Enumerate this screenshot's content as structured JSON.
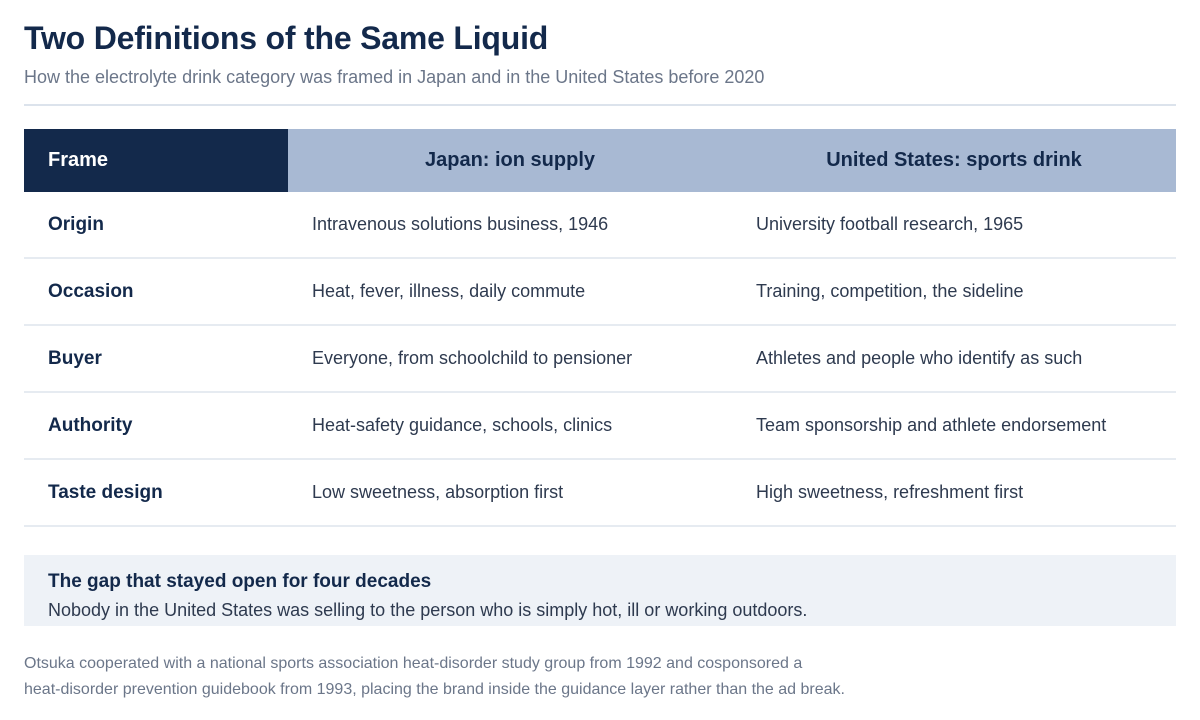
{
  "title": "Two Definitions of the Same Liquid",
  "subtitle": "How the electrolyte drink category was framed in Japan and in the United States before 2020",
  "table": {
    "headers": {
      "frame": "Frame",
      "japan": "Japan: ion supply",
      "us": "United States: sports drink"
    },
    "rows": [
      {
        "label": "Origin",
        "japan": "Intravenous solutions business, 1946",
        "us": "University football research, 1965"
      },
      {
        "label": "Occasion",
        "japan": "Heat, fever, illness, daily commute",
        "us": "Training, competition, the sideline"
      },
      {
        "label": "Buyer",
        "japan": "Everyone, from schoolchild to pensioner",
        "us": "Athletes and people who identify as such"
      },
      {
        "label": "Authority",
        "japan": "Heat-safety guidance, schools, clinics",
        "us": "Team sponsorship and athlete endorsement"
      },
      {
        "label": "Taste design",
        "japan": "Low sweetness, absorption first",
        "us": "High sweetness, refreshment first"
      }
    ]
  },
  "callout": {
    "title": "The gap that stayed open for four decades",
    "text": "Nobody in the United States was selling to the person who is simply hot, ill or working outdoors."
  },
  "footnote": {
    "line1": "Otsuka cooperated with a national sports association heat-disorder study group from 1992 and cosponsored a",
    "line2": "heat-disorder prevention guidebook from 1993, placing the brand inside the guidance layer rather than the ad break."
  },
  "colors": {
    "navy": "#13294b",
    "header_blue": "#a8b9d3",
    "callout_bg": "#eef2f7",
    "muted_text": "#6b7689"
  }
}
